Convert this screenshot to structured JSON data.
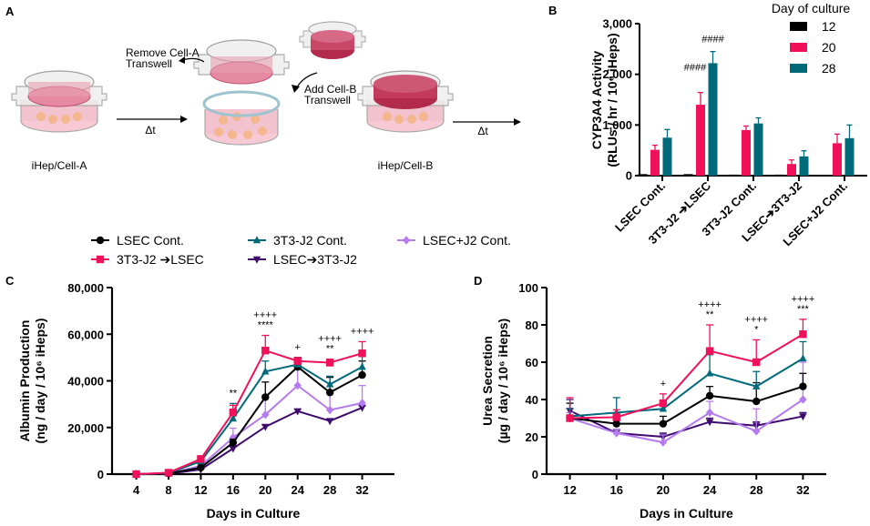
{
  "panel_a": {
    "label": "A",
    "left_caption": "iHep/Cell-A",
    "right_caption": "iHep/Cell-B",
    "remove_label_line1": "Remove Cell-A",
    "remove_label_line2": "Transwell",
    "add_label_line1": "Add Cell-B",
    "add_label_line2": "Transwell",
    "delta_t_1": "Δt",
    "delta_t_2": "Δt",
    "colors": {
      "medium": "#e58aa2",
      "cells_dark": "#b22a4c",
      "well_wall": "#b8b8b8",
      "spheroid": "#f4b68c"
    }
  },
  "legend_lines": {
    "items": [
      {
        "name": "LSEC Cont.",
        "color": "#000000",
        "marker": "circle"
      },
      {
        "name": "3T3-J2 Cont.",
        "color": "#006a7a",
        "marker": "triangle-up"
      },
      {
        "name": "LSEC+J2 Cont.",
        "color": "#b57cf0",
        "marker": "diamond"
      },
      {
        "name": "3T3-J2 ➔LSEC",
        "color": "#f0115a",
        "marker": "square"
      },
      {
        "name": "LSEC➔3T3-J2",
        "color": "#3f0a6e",
        "marker": "triangle-down"
      }
    ]
  },
  "chart_data": [
    {
      "id": "B",
      "panel_label": "B",
      "type": "bar",
      "title": "",
      "xlabel": "",
      "ylabel_line1": "CYP3A4 Activity",
      "ylabel_line2": "(RLUs / hr / 10⁶ iHeps)",
      "ylim": [
        0,
        3000
      ],
      "yticks": [
        0,
        1000,
        2000,
        3000
      ],
      "ytick_labels": [
        "0",
        "1,000",
        "2,000",
        "3,000"
      ],
      "categories": [
        "LSEC Cont.",
        "3T3-J2 ➔LSEC",
        "3T3-J2 Cont.",
        "LSEC➔3T3-J2",
        "LSEC+J2 Cont."
      ],
      "legend_title": "Day of culture",
      "legend_position": "top-right",
      "series": [
        {
          "name": "12",
          "color": "#000000",
          "values": [
            30,
            30,
            20,
            20,
            15
          ],
          "errors": [
            5,
            5,
            5,
            5,
            5
          ]
        },
        {
          "name": "20",
          "color": "#f0115a",
          "values": [
            510,
            1400,
            900,
            230,
            640
          ],
          "errors": [
            90,
            240,
            80,
            80,
            180
          ]
        },
        {
          "name": "28",
          "color": "#006a7a",
          "values": [
            750,
            2220,
            1030,
            380,
            740
          ],
          "errors": [
            160,
            230,
            110,
            110,
            260
          ]
        }
      ],
      "annotations": [
        {
          "category": 1,
          "series": "20",
          "text": "####"
        },
        {
          "category": 1,
          "series": "28",
          "text": "####"
        }
      ],
      "grid": false
    },
    {
      "id": "C",
      "panel_label": "C",
      "type": "line",
      "title": "",
      "xlabel": "Days in Culture",
      "ylabel_line1": "Albumin Production",
      "ylabel_line2": "(ng / day / 10⁶ iHeps)",
      "x": [
        4,
        8,
        12,
        16,
        20,
        24,
        28,
        32
      ],
      "xlim": [
        1,
        36
      ],
      "ylim": [
        0,
        80000
      ],
      "yticks": [
        0,
        20000,
        40000,
        60000,
        80000
      ],
      "ytick_labels": [
        "0",
        "20,000",
        "40,000",
        "60,000",
        "80,000"
      ],
      "series": [
        {
          "name": "LSEC Cont.",
          "values": [
            0,
            300,
            2800,
            13500,
            33000,
            46000,
            35000,
            42500
          ],
          "errors": [
            0,
            200,
            500,
            1500,
            6500,
            4000,
            6500,
            6000
          ]
        },
        {
          "name": "3T3-J2 Cont.",
          "values": [
            0,
            500,
            5500,
            23800,
            44000,
            47000,
            38500,
            46000
          ],
          "errors": [
            0,
            200,
            700,
            6500,
            4500,
            3000,
            3500,
            4500
          ]
        },
        {
          "name": "LSEC+J2 Cont.",
          "values": [
            0,
            300,
            3500,
            15700,
            25500,
            38000,
            27500,
            30500
          ],
          "errors": [
            0,
            200,
            600,
            4000,
            8500,
            11000,
            8500,
            7500
          ]
        },
        {
          "name": "3T3-J2 ➔LSEC",
          "values": [
            0,
            600,
            6500,
            26500,
            53000,
            48500,
            47800,
            51800
          ],
          "errors": [
            0,
            200,
            800,
            3000,
            6500,
            1500,
            1500,
            5000
          ]
        },
        {
          "name": "LSEC➔3T3-J2",
          "values": [
            0,
            200,
            2000,
            11000,
            20300,
            27000,
            22800,
            28500
          ],
          "errors": [
            0,
            100,
            300,
            700,
            800,
            800,
            800,
            900
          ]
        }
      ],
      "annotations": [
        {
          "x": 16,
          "lines": [
            "**"
          ]
        },
        {
          "x": 20,
          "lines": [
            "++++",
            "****"
          ]
        },
        {
          "x": 24,
          "lines": [
            "+"
          ]
        },
        {
          "x": 28,
          "lines": [
            "++++",
            "**"
          ]
        },
        {
          "x": 32,
          "lines": [
            "++++"
          ]
        }
      ],
      "grid": false
    },
    {
      "id": "D",
      "panel_label": "D",
      "type": "line",
      "title": "",
      "xlabel": "Days in Culture",
      "ylabel_line1": "Urea Secretion",
      "ylabel_line2": "(µg / day / 10⁶ iHeps)",
      "x": [
        12,
        16,
        20,
        24,
        28,
        32
      ],
      "xlim": [
        10,
        34
      ],
      "ylim": [
        0,
        100
      ],
      "yticks": [
        0,
        20,
        40,
        60,
        80,
        100
      ],
      "ytick_labels": [
        "0",
        "20",
        "40",
        "60",
        "80",
        "100"
      ],
      "series": [
        {
          "name": "LSEC Cont.",
          "values": [
            30,
            27,
            27,
            42,
            39,
            47
          ],
          "errors": [
            8,
            3,
            4,
            5,
            10,
            7
          ]
        },
        {
          "name": "3T3-J2 Cont.",
          "values": [
            31,
            33,
            35,
            54,
            47,
            62
          ],
          "errors": [
            4,
            8,
            4,
            10,
            8,
            9
          ]
        },
        {
          "name": "LSEC+J2 Cont.",
          "values": [
            30,
            22,
            17,
            33,
            23,
            40
          ],
          "errors": [
            3,
            2,
            4,
            6,
            12,
            20
          ]
        },
        {
          "name": "3T3-J2 ➔LSEC",
          "values": [
            30,
            30.5,
            38,
            66,
            60,
            75
          ],
          "errors": [
            11,
            4,
            5,
            14,
            12,
            8
          ]
        },
        {
          "name": "LSEC➔3T3-J2",
          "values": [
            34,
            22,
            20,
            28,
            26,
            31
          ],
          "errors": [
            6,
            2,
            2,
            2,
            2,
            2
          ]
        }
      ],
      "annotations": [
        {
          "x": 20,
          "lines": [
            "+"
          ]
        },
        {
          "x": 24,
          "lines": [
            "++++",
            "**"
          ]
        },
        {
          "x": 28,
          "lines": [
            "++++",
            "*"
          ]
        },
        {
          "x": 32,
          "lines": [
            "++++",
            "***"
          ]
        }
      ],
      "grid": false
    }
  ]
}
